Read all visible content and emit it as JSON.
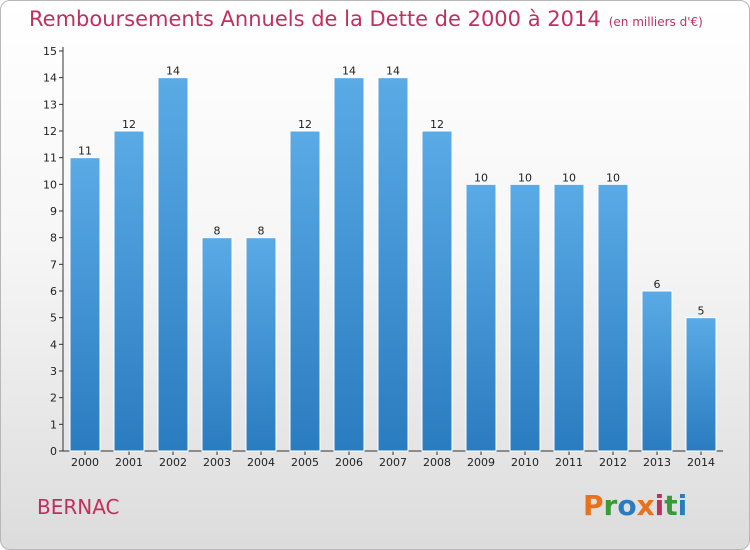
{
  "header": {
    "title": "Remboursements Annuels de la Dette de 2000 à 2014",
    "unit": "(en milliers d'€)"
  },
  "footer": {
    "commune": "BERNAC",
    "logo": [
      "P",
      "r",
      "o",
      "x",
      "i",
      "t",
      "i"
    ]
  },
  "colors": {
    "title": "#c0305f",
    "bar_light": "#5aaae6",
    "bar_dark": "#2a7cc0",
    "logo": [
      "#e8721c",
      "#3a9a3a",
      "#2a7cc0",
      "#e8721c",
      "#c0305f",
      "#3a9a3a",
      "#2a7cc0"
    ]
  },
  "chart_data": {
    "type": "bar",
    "title": "Remboursements Annuels de la Dette de 2000 à 2014",
    "xlabel": "",
    "ylabel": "",
    "categories": [
      "2000",
      "2001",
      "2002",
      "2003",
      "2004",
      "2005",
      "2006",
      "2007",
      "2008",
      "2009",
      "2010",
      "2011",
      "2012",
      "2013",
      "2014"
    ],
    "values": [
      11,
      12,
      14,
      8,
      8,
      12,
      14,
      14,
      12,
      10,
      10,
      10,
      10,
      6,
      5
    ],
    "ylim": [
      0,
      15
    ],
    "yticks": [
      0,
      1,
      2,
      3,
      4,
      5,
      6,
      7,
      8,
      9,
      10,
      11,
      12,
      13,
      14,
      15
    ],
    "grid": false,
    "legend": "none"
  }
}
